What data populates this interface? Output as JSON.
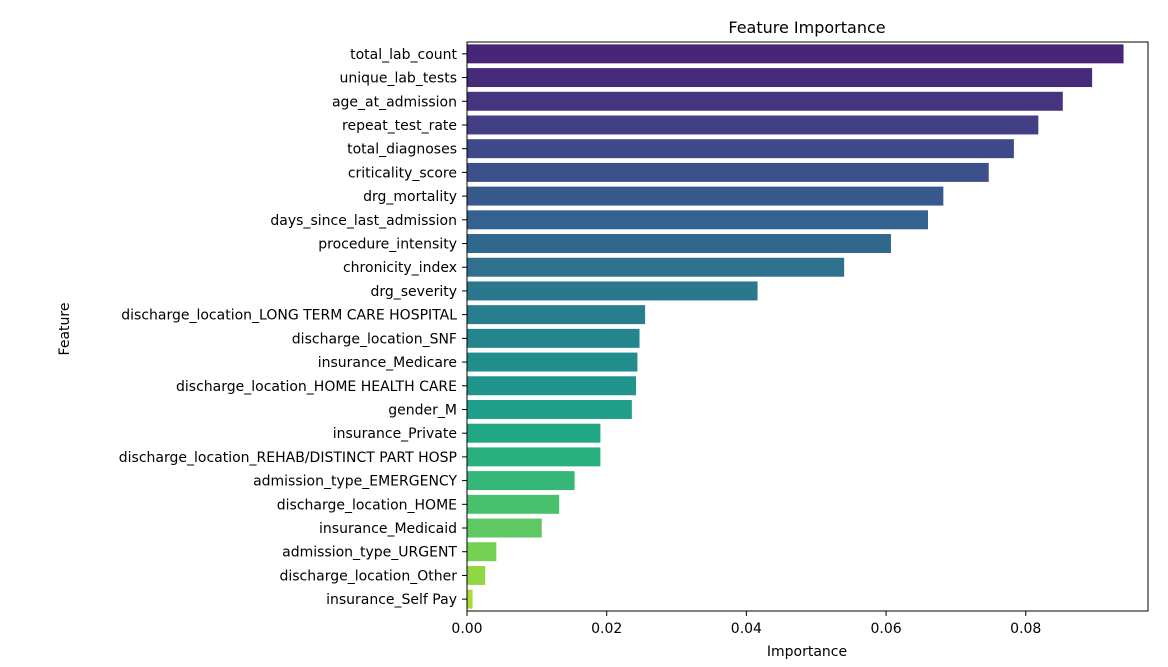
{
  "chart_data": {
    "type": "bar",
    "orientation": "horizontal",
    "title": "Feature Importance",
    "xlabel": "Importance",
    "ylabel": "Feature",
    "xlim": [
      0,
      0.0975
    ],
    "xticks": [
      0.0,
      0.02,
      0.04,
      0.06,
      0.08
    ],
    "xtick_labels": [
      "0.00",
      "0.02",
      "0.04",
      "0.06",
      "0.08"
    ],
    "grid": false,
    "colormap": "viridis",
    "categories": [
      "total_lab_count",
      "unique_lab_tests",
      "age_at_admission",
      "repeat_test_rate",
      "total_diagnoses",
      "criticality_score",
      "drg_mortality",
      "days_since_last_admission",
      "procedure_intensity",
      "chronicity_index",
      "drg_severity",
      "discharge_location_LONG TERM CARE HOSPITAL",
      "discharge_location_SNF",
      "insurance_Medicare",
      "discharge_location_HOME HEALTH CARE",
      "gender_M",
      "insurance_Private",
      "discharge_location_REHAB/DISTINCT PART HOSP",
      "admission_type_EMERGENCY",
      "discharge_location_HOME",
      "insurance_Medicaid",
      "admission_type_URGENT",
      "discharge_location_Other",
      "insurance_Self Pay"
    ],
    "values": [
      0.094,
      0.0895,
      0.0853,
      0.0818,
      0.0783,
      0.0747,
      0.0682,
      0.066,
      0.0607,
      0.054,
      0.0416,
      0.0255,
      0.0247,
      0.0244,
      0.0242,
      0.0236,
      0.0191,
      0.0191,
      0.0154,
      0.0132,
      0.0107,
      0.0042,
      0.0026,
      0.0008
    ],
    "colors": [
      "#482576",
      "#472a7a",
      "#463480",
      "#423f85",
      "#3f4889",
      "#3c508b",
      "#38598c",
      "#34618d",
      "#31688e",
      "#2e708e",
      "#2b788e",
      "#287d8e",
      "#25858e",
      "#228d8d",
      "#1f958b",
      "#1f9e89",
      "#22a785",
      "#2ab07f",
      "#35b779",
      "#48c16e",
      "#5ec962",
      "#75d054",
      "#90d743",
      "#addc30"
    ]
  }
}
